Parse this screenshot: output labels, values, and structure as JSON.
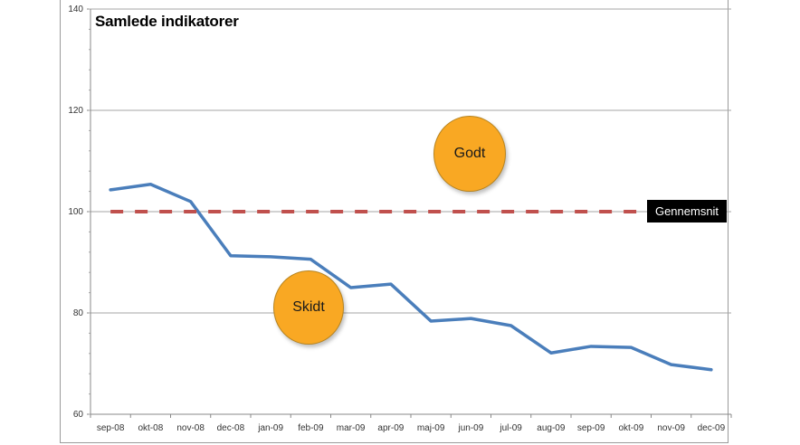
{
  "chart_data": {
    "type": "line",
    "title": "Samlede indikatorer",
    "xlabel": "",
    "ylabel": "",
    "ylim": [
      60,
      140
    ],
    "yticks": [
      60,
      80,
      100,
      120,
      140
    ],
    "grid": true,
    "categories": [
      "sep-08",
      "okt-08",
      "nov-08",
      "dec-08",
      "jan-09",
      "feb-09",
      "mar-09",
      "apr-09",
      "maj-09",
      "jun-09",
      "jul-09",
      "aug-09",
      "sep-09",
      "okt-09",
      "nov-09",
      "dec-09"
    ],
    "series": [
      {
        "name": "Samlede indikatorer",
        "color": "#4a7ebb",
        "values": [
          104.3,
          105.4,
          102.0,
          91.3,
          91.1,
          90.6,
          85.0,
          85.7,
          78.4,
          78.9,
          77.5,
          72.1,
          73.4,
          73.2,
          69.8,
          68.8
        ]
      },
      {
        "name": "Gennemsnit",
        "color": "#c0504d",
        "style": "dashed",
        "values": [
          100,
          100,
          100,
          100,
          100,
          100,
          100,
          100,
          100,
          100,
          100,
          100,
          100,
          100,
          100,
          100
        ]
      }
    ],
    "annotations": [
      {
        "text": "Godt",
        "type": "circle",
        "color": "#f9a823"
      },
      {
        "text": "Skidt",
        "type": "circle",
        "color": "#f9a823"
      },
      {
        "text": "Gennemsnit",
        "type": "label",
        "color": "#000000"
      }
    ]
  },
  "labels": {
    "title": "Samlede indikatorer",
    "godt": "Godt",
    "skidt": "Skidt",
    "gennemsnit": "Gennemsnit",
    "y": [
      "140",
      "120",
      "100",
      "80",
      "60"
    ]
  }
}
